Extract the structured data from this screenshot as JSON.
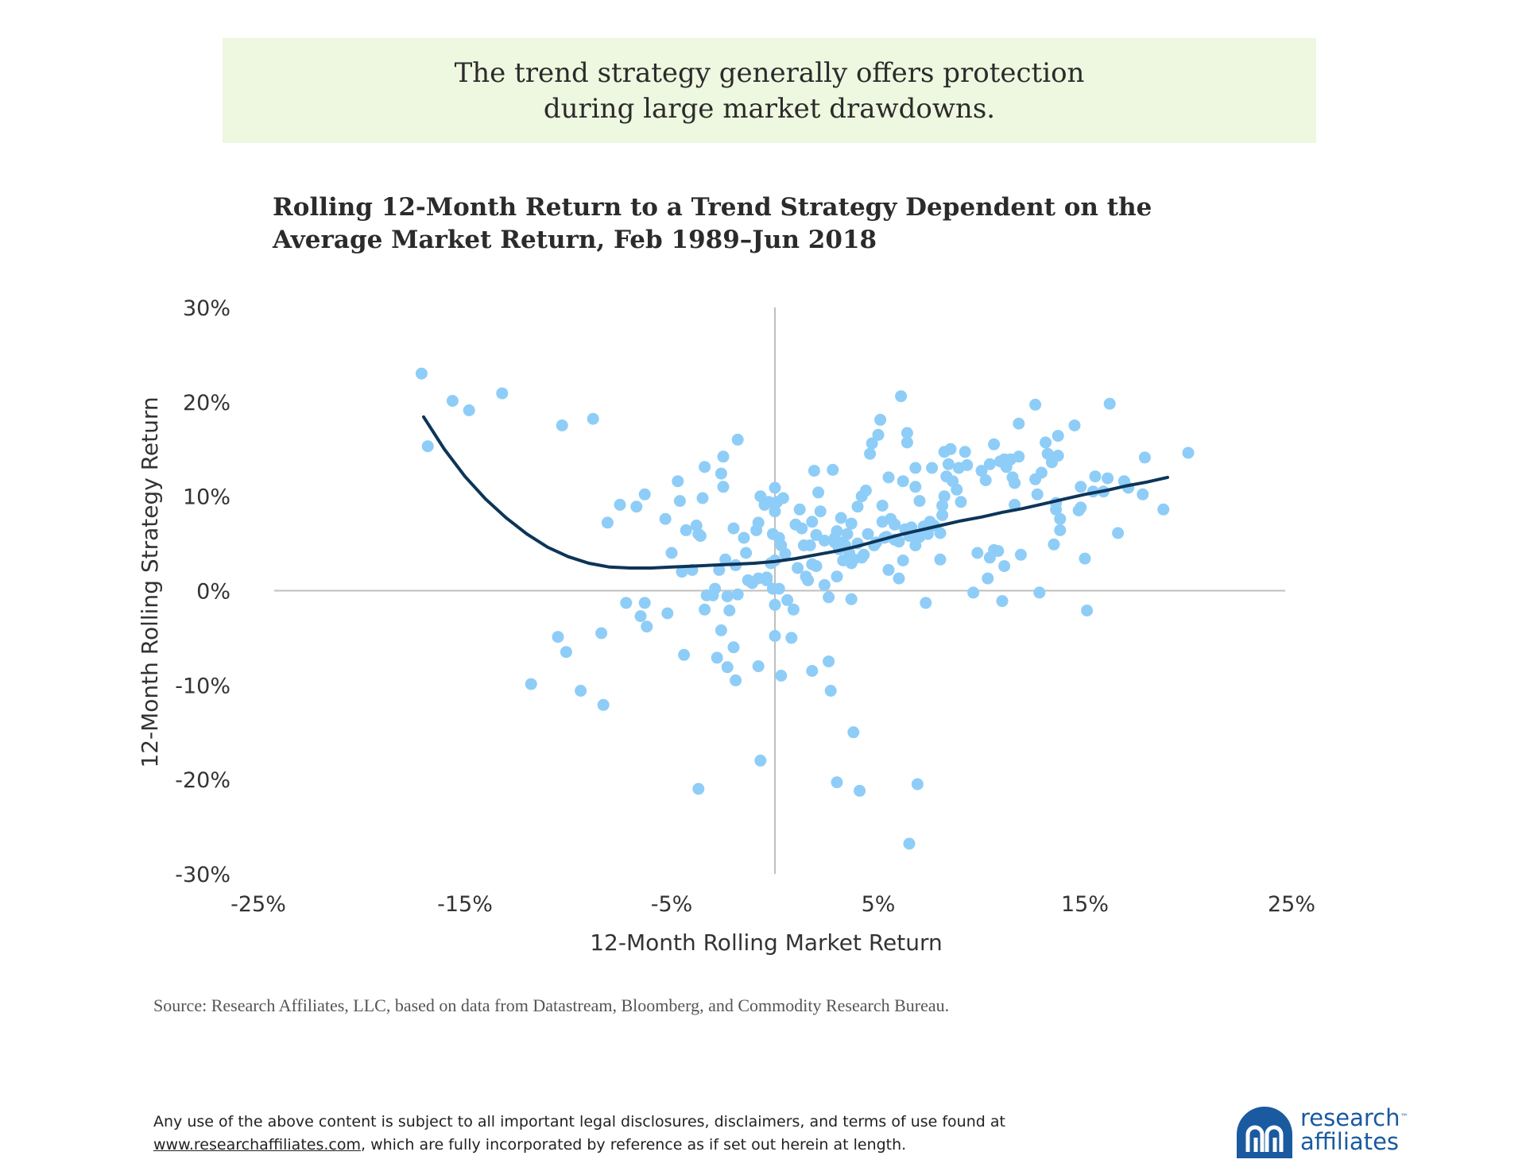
{
  "banner": {
    "line1": "The trend strategy generally offers protection",
    "line2": "during large market drawdowns."
  },
  "chart_data": {
    "type": "scatter",
    "title_line1": "Rolling 12-Month Return to a Trend Strategy Dependent on the",
    "title_line2": "Average Market Return, Feb 1989–Jun 2018",
    "xlabel": "12-Month Rolling Market Return",
    "ylabel": "12-Month Rolling Strategy Return",
    "xlim": [
      -25,
      25
    ],
    "ylim": [
      -30,
      30
    ],
    "x_ticks": [
      "-25%",
      "-15%",
      "-5%",
      "5%",
      "15%",
      "25%"
    ],
    "y_ticks": [
      "30%",
      "20%",
      "10%",
      "0%",
      "-10%",
      "-20%",
      "-30%"
    ],
    "colors": {
      "points": "#8ecdf7",
      "trend": "#0d3559",
      "axis": "#bfbfbf"
    },
    "points": [
      [
        -17.1,
        23
      ],
      [
        -16.8,
        15.3
      ],
      [
        -15.6,
        20.1
      ],
      [
        -14.8,
        19.1
      ],
      [
        -13.2,
        20.9
      ],
      [
        -10.3,
        17.5
      ],
      [
        -8.8,
        18.2
      ],
      [
        -11.8,
        -9.9
      ],
      [
        -10.5,
        -4.9
      ],
      [
        -10.1,
        -6.5
      ],
      [
        -9.4,
        -10.6
      ],
      [
        -8.4,
        -4.5
      ],
      [
        -8.3,
        -12.1
      ],
      [
        -8.1,
        7.2
      ],
      [
        -7.5,
        9.1
      ],
      [
        -7.2,
        -1.3
      ],
      [
        -6.7,
        8.9
      ],
      [
        -6.5,
        -2.7
      ],
      [
        -6.3,
        -1.3
      ],
      [
        -6.2,
        -3.8
      ],
      [
        -6.3,
        10.2
      ],
      [
        -5.3,
        7.6
      ],
      [
        -5.2,
        -2.4
      ],
      [
        -5.0,
        4.0
      ],
      [
        -4.7,
        11.6
      ],
      [
        -4.6,
        9.5
      ],
      [
        -4.5,
        2.0
      ],
      [
        -4.4,
        -6.8
      ],
      [
        -4.3,
        6.4
      ],
      [
        -4.0,
        2.2
      ],
      [
        -3.8,
        6.9
      ],
      [
        -3.7,
        6.0
      ],
      [
        -3.6,
        5.8
      ],
      [
        -3.7,
        -21
      ],
      [
        -3.5,
        9.8
      ],
      [
        -3.4,
        13.1
      ],
      [
        -3.4,
        -2.0
      ],
      [
        -3.3,
        -0.5
      ],
      [
        -3.0,
        -0.5
      ],
      [
        -2.9,
        0.2
      ],
      [
        -2.8,
        -7.1
      ],
      [
        -2.7,
        2.2
      ],
      [
        -2.6,
        12.4
      ],
      [
        -2.6,
        -4.2
      ],
      [
        -2.5,
        11.0
      ],
      [
        -2.5,
        14.2
      ],
      [
        -2.4,
        3.3
      ],
      [
        -2.3,
        -8.1
      ],
      [
        -2.3,
        -0.6
      ],
      [
        -2.2,
        -2.1
      ],
      [
        -2.0,
        6.6
      ],
      [
        -2.0,
        -6.0
      ],
      [
        -1.9,
        2.7
      ],
      [
        -1.9,
        -9.5
      ],
      [
        -1.8,
        16.0
      ],
      [
        -1.8,
        -0.4
      ],
      [
        -1.5,
        5.6
      ],
      [
        -1.4,
        4.0
      ],
      [
        -1.3,
        1.1
      ],
      [
        -1.1,
        0.8
      ],
      [
        -0.9,
        6.4
      ],
      [
        -0.8,
        7.2
      ],
      [
        -0.8,
        1.3
      ],
      [
        -0.8,
        -8.0
      ],
      [
        -0.7,
        10.0
      ],
      [
        -0.7,
        -18.0
      ],
      [
        -0.5,
        9.1
      ],
      [
        -0.4,
        1.4
      ],
      [
        -0.4,
        1.1
      ],
      [
        -0.3,
        9.4
      ],
      [
        -0.2,
        2.9
      ],
      [
        -0.1,
        6.0
      ],
      [
        -0.1,
        0.2
      ],
      [
        0,
        3.2
      ],
      [
        0,
        10.9
      ],
      [
        0,
        8.4
      ],
      [
        0,
        -1.5
      ],
      [
        0,
        -4.8
      ],
      [
        0.1,
        9.4
      ],
      [
        0.2,
        5.6
      ],
      [
        0.2,
        0.2
      ],
      [
        0.3,
        4.8
      ],
      [
        0.3,
        -9.0
      ],
      [
        0.4,
        9.8
      ],
      [
        0.5,
        3.9
      ],
      [
        0.6,
        -1.0
      ],
      [
        0.8,
        -5.0
      ],
      [
        0.9,
        -2.0
      ],
      [
        1.0,
        7.0
      ],
      [
        1.1,
        2.4
      ],
      [
        1.2,
        8.6
      ],
      [
        1.3,
        6.6
      ],
      [
        1.4,
        4.8
      ],
      [
        1.5,
        1.5
      ],
      [
        1.6,
        1.1
      ],
      [
        1.7,
        4.8
      ],
      [
        1.8,
        2.8
      ],
      [
        1.8,
        7.3
      ],
      [
        1.8,
        -8.5
      ],
      [
        1.9,
        12.7
      ],
      [
        2.0,
        5.9
      ],
      [
        2.0,
        2.6
      ],
      [
        2.1,
        10.4
      ],
      [
        2.2,
        8.4
      ],
      [
        2.4,
        5.3
      ],
      [
        2.4,
        0.6
      ],
      [
        2.6,
        -0.7
      ],
      [
        2.6,
        -7.5
      ],
      [
        2.7,
        -10.6
      ],
      [
        2.8,
        12.8
      ],
      [
        2.9,
        5.6
      ],
      [
        2.9,
        5.1
      ],
      [
        3.0,
        6.3
      ],
      [
        3.0,
        1.5
      ],
      [
        3.0,
        -20.3
      ],
      [
        3.1,
        4.4
      ],
      [
        3.2,
        7.7
      ],
      [
        3.3,
        5.1
      ],
      [
        3.3,
        3.2
      ],
      [
        3.4,
        4.8
      ],
      [
        3.5,
        6.0
      ],
      [
        3.6,
        4.0
      ],
      [
        3.7,
        2.9
      ],
      [
        3.7,
        7.1
      ],
      [
        3.7,
        -0.9
      ],
      [
        3.8,
        3.3
      ],
      [
        3.8,
        -15.0
      ],
      [
        4.0,
        8.9
      ],
      [
        4.0,
        5.0
      ],
      [
        4.1,
        -21.2
      ],
      [
        4.2,
        10.0
      ],
      [
        4.2,
        3.5
      ],
      [
        4.3,
        3.8
      ],
      [
        4.4,
        10.6
      ],
      [
        4.5,
        6.0
      ],
      [
        4.6,
        14.5
      ],
      [
        4.7,
        15.6
      ],
      [
        4.8,
        4.8
      ],
      [
        4.9,
        5.1
      ],
      [
        5.0,
        16.5
      ],
      [
        5.1,
        18.1
      ],
      [
        5.2,
        9.0
      ],
      [
        5.2,
        7.3
      ],
      [
        5.3,
        5.6
      ],
      [
        5.4,
        5.7
      ],
      [
        5.5,
        12.0
      ],
      [
        5.5,
        2.2
      ],
      [
        5.6,
        7.6
      ],
      [
        5.8,
        5.4
      ],
      [
        5.8,
        7.0
      ],
      [
        6.0,
        1.3
      ],
      [
        6.0,
        5.2
      ],
      [
        6.1,
        20.6
      ],
      [
        6.2,
        11.6
      ],
      [
        6.2,
        3.2
      ],
      [
        6.3,
        6.5
      ],
      [
        6.4,
        16.7
      ],
      [
        6.4,
        15.7
      ],
      [
        6.5,
        5.8
      ],
      [
        6.5,
        -26.8
      ],
      [
        6.6,
        6.7
      ],
      [
        6.8,
        11.0
      ],
      [
        6.8,
        13.0
      ],
      [
        6.8,
        4.8
      ],
      [
        6.9,
        -20.5
      ],
      [
        7.0,
        9.5
      ],
      [
        7.0,
        5.7
      ],
      [
        7.2,
        6.8
      ],
      [
        7.3,
        -1.3
      ],
      [
        7.4,
        6.0
      ],
      [
        7.5,
        7.3
      ],
      [
        7.6,
        13.0
      ],
      [
        7.7,
        6.9
      ],
      [
        8.0,
        6.1
      ],
      [
        8.0,
        3.3
      ],
      [
        8.1,
        9.0
      ],
      [
        8.1,
        8.0
      ],
      [
        8.2,
        14.7
      ],
      [
        8.2,
        10.0
      ],
      [
        8.3,
        12.1
      ],
      [
        8.4,
        13.4
      ],
      [
        8.5,
        15.0
      ],
      [
        8.6,
        11.6
      ],
      [
        8.8,
        10.7
      ],
      [
        8.9,
        13.0
      ],
      [
        9.0,
        9.4
      ],
      [
        9.2,
        14.7
      ],
      [
        9.3,
        13.3
      ],
      [
        9.6,
        -0.2
      ],
      [
        9.8,
        4.0
      ],
      [
        10.0,
        12.7
      ],
      [
        10.2,
        11.7
      ],
      [
        10.3,
        1.3
      ],
      [
        10.4,
        3.5
      ],
      [
        10.4,
        13.4
      ],
      [
        10.6,
        15.5
      ],
      [
        10.6,
        4.3
      ],
      [
        10.8,
        4.2
      ],
      [
        10.9,
        13.7
      ],
      [
        11.0,
        -1.1
      ],
      [
        11.1,
        13.9
      ],
      [
        11.1,
        2.6
      ],
      [
        11.2,
        13.1
      ],
      [
        11.4,
        13.9
      ],
      [
        11.5,
        12.0
      ],
      [
        11.6,
        9.1
      ],
      [
        11.6,
        11.4
      ],
      [
        11.8,
        14.2
      ],
      [
        11.8,
        17.7
      ],
      [
        11.9,
        3.8
      ],
      [
        12.6,
        19.7
      ],
      [
        12.6,
        11.8
      ],
      [
        12.7,
        10.2
      ],
      [
        12.8,
        -0.2
      ],
      [
        12.9,
        12.5
      ],
      [
        13.1,
        15.7
      ],
      [
        13.2,
        14.5
      ],
      [
        13.4,
        13.6
      ],
      [
        13.5,
        4.9
      ],
      [
        13.6,
        9.3
      ],
      [
        13.6,
        8.6
      ],
      [
        13.7,
        14.3
      ],
      [
        13.7,
        16.4
      ],
      [
        13.8,
        7.6
      ],
      [
        13.8,
        6.4
      ],
      [
        14.5,
        17.5
      ],
      [
        14.7,
        8.5
      ],
      [
        14.8,
        8.8
      ],
      [
        14.8,
        11.0
      ],
      [
        15.0,
        3.4
      ],
      [
        15.1,
        -2.1
      ],
      [
        15.4,
        10.5
      ],
      [
        15.5,
        12.1
      ],
      [
        15.9,
        10.5
      ],
      [
        16.1,
        11.9
      ],
      [
        16.2,
        19.8
      ],
      [
        16.6,
        6.1
      ],
      [
        16.9,
        11.6
      ],
      [
        17.1,
        10.9
      ],
      [
        17.8,
        10.2
      ],
      [
        17.9,
        14.1
      ],
      [
        18.8,
        8.6
      ],
      [
        20.0,
        14.6
      ]
    ],
    "trend_line": [
      [
        -17.0,
        18.4
      ],
      [
        -16.0,
        15.0
      ],
      [
        -15.0,
        12.1
      ],
      [
        -14.0,
        9.7
      ],
      [
        -13.0,
        7.7
      ],
      [
        -12.0,
        6.0
      ],
      [
        -11.0,
        4.6
      ],
      [
        -10.0,
        3.6
      ],
      [
        -9.0,
        2.9
      ],
      [
        -8.0,
        2.5
      ],
      [
        -7.0,
        2.4
      ],
      [
        -6.0,
        2.4
      ],
      [
        -5.0,
        2.5
      ],
      [
        -4.0,
        2.6
      ],
      [
        -3.0,
        2.7
      ],
      [
        -2.0,
        2.8
      ],
      [
        -1.0,
        2.9
      ],
      [
        0.0,
        3.1
      ],
      [
        1.0,
        3.4
      ],
      [
        2.0,
        3.8
      ],
      [
        3.0,
        4.2
      ],
      [
        4.0,
        4.7
      ],
      [
        5.0,
        5.3
      ],
      [
        6.0,
        5.9
      ],
      [
        7.0,
        6.4
      ],
      [
        8.0,
        6.9
      ],
      [
        9.0,
        7.4
      ],
      [
        10.0,
        7.8
      ],
      [
        11.0,
        8.3
      ],
      [
        12.0,
        8.7
      ],
      [
        13.0,
        9.2
      ],
      [
        14.0,
        9.7
      ],
      [
        15.0,
        10.2
      ],
      [
        16.0,
        10.6
      ],
      [
        17.0,
        11.1
      ],
      [
        18.0,
        11.5
      ],
      [
        19.0,
        12.0
      ]
    ]
  },
  "source_text": "Source: Research Affiliates, LLC, based on data from Datastream, Bloomberg, and Commodity Research Bureau.",
  "disclaimer": {
    "line1": "Any use of the above content is subject to all important legal disclosures, disclaimers, and terms of use found at",
    "link": "www.researchaffiliates.com",
    "line2_rest": ", which are fully incorporated by reference as if set out herein at length."
  },
  "logo": {
    "word1": "research",
    "word2": "affiliates",
    "tm": "™",
    "color": "#1a5aa0"
  }
}
